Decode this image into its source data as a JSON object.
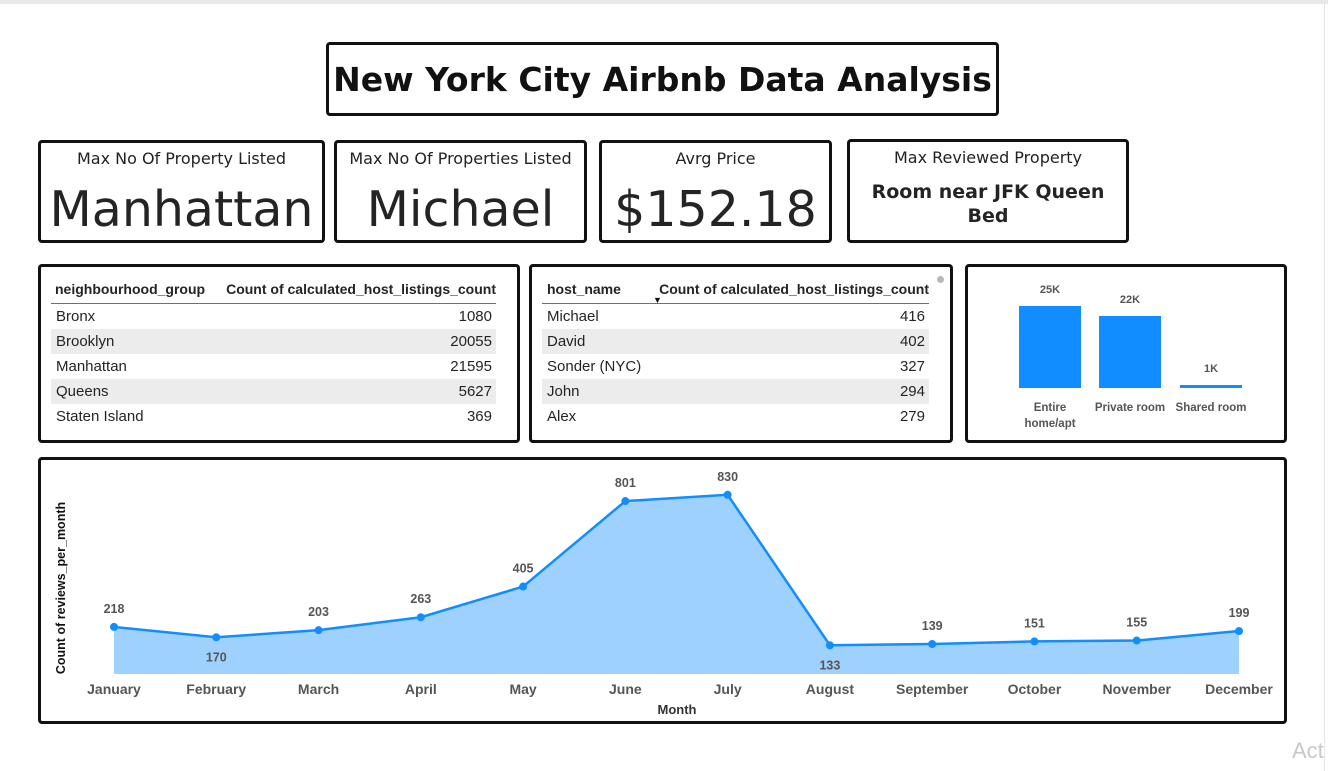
{
  "title": "New York City Airbnb Data Analysis",
  "cards": [
    {
      "label": "Max No Of Property Listed",
      "value": "Manhattan"
    },
    {
      "label": "Max No Of Properties Listed",
      "value": "Michael"
    },
    {
      "label": "Avrg Price",
      "value": "$152.18"
    },
    {
      "label": "Max Reviewed Property",
      "value": "Room near JFK Queen Bed"
    }
  ],
  "table1": {
    "headers": [
      "neighbourhood_group",
      "Count of calculated_host_listings_count"
    ],
    "rows": [
      [
        "Bronx",
        "1080"
      ],
      [
        "Brooklyn",
        "20055"
      ],
      [
        "Manhattan",
        "21595"
      ],
      [
        "Queens",
        "5627"
      ],
      [
        "Staten Island",
        "369"
      ]
    ]
  },
  "table2": {
    "headers": [
      "host_name",
      "Count of calculated_host_listings_count"
    ],
    "rows": [
      [
        "Michael",
        "416"
      ],
      [
        "David",
        "402"
      ],
      [
        "Sonder (NYC)",
        "327"
      ],
      [
        "John",
        "294"
      ],
      [
        "Alex",
        "279"
      ]
    ]
  },
  "bar_chart": {
    "type": "bar",
    "categories": [
      "Entire home/apt",
      "Private room",
      "Shared room"
    ],
    "values": [
      25000,
      22000,
      1000
    ],
    "data_labels": [
      "25K",
      "22K",
      "1K"
    ],
    "color": "#118dff"
  },
  "chart_data": {
    "type": "area",
    "categories": [
      "January",
      "February",
      "March",
      "April",
      "May",
      "June",
      "July",
      "August",
      "September",
      "October",
      "November",
      "December"
    ],
    "values": [
      218,
      170,
      203,
      263,
      405,
      801,
      830,
      133,
      139,
      151,
      155,
      199
    ],
    "xlabel": "Month",
    "ylabel": "Count of reviews_per_month",
    "line_color": "#118dff",
    "fill_color": "#9fd1ff"
  },
  "watermark": "Act"
}
